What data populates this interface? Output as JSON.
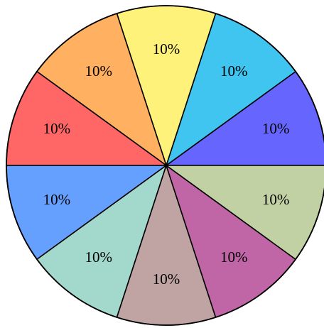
{
  "chart_data": {
    "type": "pie",
    "values": [
      10,
      10,
      10,
      10,
      10,
      10,
      10,
      10,
      10,
      10
    ],
    "value_labels": [
      "10%",
      "10%",
      "10%",
      "10%",
      "10%",
      "10%",
      "10%",
      "10%",
      "10%",
      "10%"
    ],
    "colors": [
      "#6666ff",
      "#40c4f0",
      "#fff27a",
      "#ffb061",
      "#ff6666",
      "#66a0ff",
      "#a3d9cc",
      "#c0a3a3",
      "#c066a6",
      "#c2d1a3"
    ]
  }
}
